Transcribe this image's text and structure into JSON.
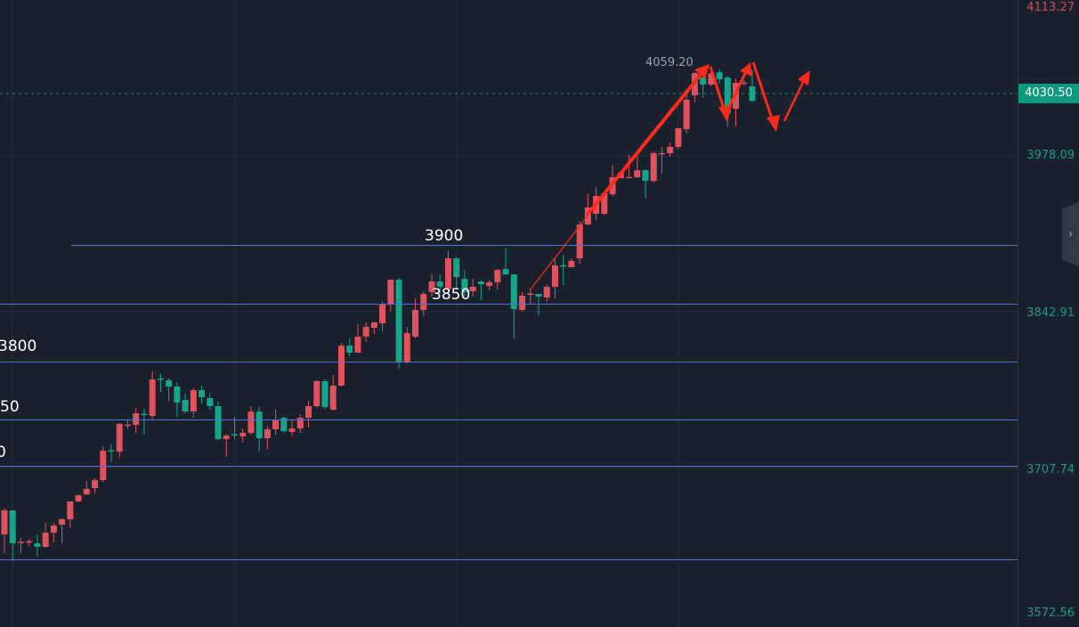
{
  "chart_data": {
    "type": "candlestick",
    "ylim": [
      3572.56,
      4113.27
    ],
    "y_ticks": [
      "4113.27",
      "3978.09",
      "3842.91",
      "3707.74",
      "3572.56"
    ],
    "last_price": "4030.50",
    "high_label": "4059.20",
    "levels": [
      {
        "label": "3900"
      },
      {
        "label": "3850"
      },
      {
        "label": "3800"
      },
      {
        "label": "50"
      },
      {
        "label": "0"
      },
      {
        "label": ""
      }
    ],
    "colors": {
      "up": "#e0525e",
      "down": "#14a58a",
      "level": "#5472d3",
      "annotation": "#ff2a1a",
      "background": "#1a202c"
    },
    "ohlc": [
      [
        3644.0,
        3667.0,
        3627.3,
        3665.4
      ],
      [
        3665.4,
        3665.4,
        3620.2,
        3636.1
      ],
      [
        3636.9,
        3640.8,
        3627.3,
        3637.5
      ],
      [
        3637.7,
        3640.0,
        3633.7,
        3637.9
      ],
      [
        3636.1,
        3644.0,
        3624.2,
        3632.9
      ],
      [
        3632.9,
        3654.3,
        3632.1,
        3645.6
      ],
      [
        3645.6,
        3654.3,
        3636.9,
        3651.9
      ],
      [
        3652.7,
        3658.3,
        3636.1,
        3657.5
      ],
      [
        3657.5,
        3673.4,
        3649.6,
        3673.4
      ],
      [
        3673.4,
        3679.7,
        3672.6,
        3678.9
      ],
      [
        3679.7,
        3691.6,
        3678.9,
        3684.5
      ],
      [
        3685.3,
        3694.0,
        3680.5,
        3692.4
      ],
      [
        3692.4,
        3722.6,
        3690.8,
        3718.6
      ],
      [
        3719.0,
        3724.2,
        3708.3,
        3718.2
      ],
      [
        3717.8,
        3743.3,
        3712.3,
        3742.5
      ],
      [
        3741.5,
        3745.6,
        3737.7,
        3741.9
      ],
      [
        3741.7,
        3756.7,
        3734.5,
        3752.0
      ],
      [
        3751.6,
        3755.9,
        3732.9,
        3750.8
      ],
      [
        3749.6,
        3789.3,
        3746.4,
        3782.2
      ],
      [
        3783.0,
        3786.9,
        3771.0,
        3782.4
      ],
      [
        3781.4,
        3783.0,
        3762.3,
        3775.8
      ],
      [
        3775.8,
        3779.8,
        3748.8,
        3761.5
      ],
      [
        3763.9,
        3769.5,
        3752.0,
        3753.6
      ],
      [
        3753.6,
        3774.2,
        3748.0,
        3772.6
      ],
      [
        3772.6,
        3776.6,
        3760.7,
        3766.3
      ],
      [
        3765.5,
        3770.3,
        3755.2,
        3758.3
      ],
      [
        3758.3,
        3762.3,
        3728.2,
        3729.0
      ],
      [
        3729.0,
        3733.7,
        3713.1,
        3732.1
      ],
      [
        3733.3,
        3748.8,
        3729.0,
        3732.9
      ],
      [
        3731.3,
        3738.5,
        3725.8,
        3734.5
      ],
      [
        3734.5,
        3758.3,
        3732.9,
        3753.6
      ],
      [
        3753.6,
        3757.5,
        3717.8,
        3729.8
      ],
      [
        3729.8,
        3740.9,
        3719.4,
        3737.7
      ],
      [
        3737.7,
        3755.2,
        3732.9,
        3745.6
      ],
      [
        3748.0,
        3748.8,
        3734.5,
        3736.1
      ],
      [
        3735.3,
        3745.6,
        3731.3,
        3738.5
      ],
      [
        3738.5,
        3751.2,
        3734.5,
        3748.0
      ],
      [
        3748.0,
        3763.1,
        3739.3,
        3758.3
      ],
      [
        3758.3,
        3781.4,
        3756.7,
        3780.6
      ],
      [
        3780.6,
        3782.2,
        3755.9,
        3757.5
      ],
      [
        3755.2,
        3786.1,
        3754.4,
        3776.6
      ],
      [
        3776.6,
        3814.7,
        3775.8,
        3812.3
      ],
      [
        3812.3,
        3818.7,
        3802.8,
        3806.0
      ],
      [
        3806.0,
        3831.4,
        3806.0,
        3820.3
      ],
      [
        3820.3,
        3833.0,
        3815.5,
        3829.0
      ],
      [
        3828.2,
        3833.0,
        3822.7,
        3833.0
      ],
      [
        3832.2,
        3851.2,
        3825.0,
        3848.9
      ],
      [
        3848.9,
        3871.1,
        3842.5,
        3871.1
      ],
      [
        3871.1,
        3872.7,
        3791.7,
        3798.0
      ],
      [
        3797.2,
        3829.0,
        3796.4,
        3823.4
      ],
      [
        3820.3,
        3854.4,
        3818.7,
        3844.1
      ],
      [
        3844.1,
        3860.8,
        3838.5,
        3858.4
      ],
      [
        3860.0,
        3875.8,
        3856.0,
        3869.5
      ],
      [
        3869.5,
        3875.8,
        3858.4,
        3864.7
      ],
      [
        3863.1,
        3896.5,
        3858.4,
        3890.1
      ],
      [
        3890.1,
        3890.9,
        3862.3,
        3873.5
      ],
      [
        3871.9,
        3879.8,
        3856.0,
        3860.0
      ],
      [
        3860.8,
        3871.9,
        3856.0,
        3864.7
      ],
      [
        3869.5,
        3870.3,
        3852.8,
        3867.1
      ],
      [
        3865.5,
        3870.3,
        3861.6,
        3868.7
      ],
      [
        3868.7,
        3880.6,
        3862.3,
        3879.8
      ],
      [
        3880.6,
        3898.9,
        3875.1,
        3875.8
      ],
      [
        3875.8,
        3875.8,
        3818.7,
        3844.9
      ],
      [
        3844.1,
        3860.0,
        3842.5,
        3856.8
      ],
      [
        3858.0,
        3863.1,
        3848.9,
        3858.8
      ],
      [
        3858.4,
        3858.4,
        3838.5,
        3856.0
      ],
      [
        3855.2,
        3867.1,
        3851.2,
        3864.7
      ],
      [
        3864.7,
        3890.1,
        3854.4,
        3883.8
      ],
      [
        3884.0,
        3893.3,
        3866.3,
        3883.4
      ],
      [
        3882.2,
        3890.1,
        3882.2,
        3887.8
      ],
      [
        3890.1,
        3923.5,
        3885.4,
        3920.3
      ],
      [
        3920.3,
        3947.3,
        3919.5,
        3935.4
      ],
      [
        3929.8,
        3952.9,
        3924.3,
        3945.7
      ],
      [
        3929.8,
        3948.1,
        3928.3,
        3948.1
      ],
      [
        3947.3,
        3973.5,
        3945.7,
        3962.4
      ],
      [
        3961.6,
        3968.0,
        3961.6,
        3966.4
      ],
      [
        3962.2,
        3982.2,
        3961.6,
        3962.6
      ],
      [
        3962.4,
        3981.4,
        3961.6,
        3968.7
      ],
      [
        3968.7,
        3969.5,
        3944.1,
        3959.2
      ],
      [
        3959.2,
        3985.4,
        3957.6,
        3983.8
      ],
      [
        3983.6,
        3989.4,
        3965.6,
        3984.0
      ],
      [
        3983.8,
        3993.4,
        3980.7,
        3989.4
      ],
      [
        3989.4,
        4006.9,
        3987.8,
        4006.1
      ],
      [
        4005.3,
        4036.2,
        4001.3,
        4031.5
      ],
      [
        4035.4,
        4056.1,
        4029.1,
        4055.3
      ],
      [
        4051.3,
        4052.9,
        4033.1,
        4045.0
      ],
      [
        4045.0,
        4059.2,
        4043.4,
        4055.0
      ],
      [
        4056.0,
        4059.0,
        4045.8,
        4049.7
      ],
      [
        4051.3,
        4052.9,
        4007.7,
        4019.6
      ],
      [
        4023.5,
        4050.5,
        4007.7,
        4046.6
      ],
      [
        4046.4,
        4049.0,
        4044.0,
        4046.8
      ],
      [
        4043.4,
        4058.0,
        4029.0,
        4030.5
      ]
    ]
  }
}
